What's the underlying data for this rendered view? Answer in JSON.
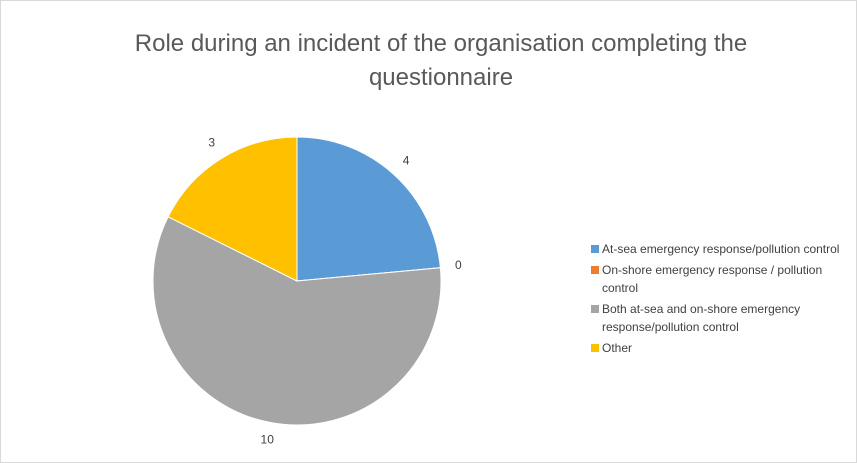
{
  "chart_data": {
    "type": "pie",
    "title": "Role during an incident of the organisation completing the questionnaire",
    "categories": [
      "At-sea emergency response/pollution control",
      "On-shore emergency response / pollution control",
      "Both at-sea and on-shore emergency response/pollution control",
      "Other"
    ],
    "values": [
      4,
      0,
      10,
      3
    ],
    "colors": [
      "#5b9bd5",
      "#ed7d31",
      "#a5a5a5",
      "#ffc000"
    ],
    "legend": "right"
  }
}
